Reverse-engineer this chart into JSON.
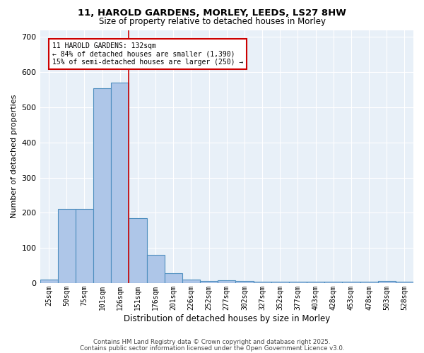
{
  "title_line1": "11, HAROLD GARDENS, MORLEY, LEEDS, LS27 8HW",
  "title_line2": "Size of property relative to detached houses in Morley",
  "xlabel": "Distribution of detached houses by size in Morley",
  "ylabel": "Number of detached properties",
  "categories": [
    "25sqm",
    "50sqm",
    "75sqm",
    "101sqm",
    "126sqm",
    "151sqm",
    "176sqm",
    "201sqm",
    "226sqm",
    "252sqm",
    "277sqm",
    "302sqm",
    "327sqm",
    "352sqm",
    "377sqm",
    "403sqm",
    "428sqm",
    "453sqm",
    "478sqm",
    "503sqm",
    "528sqm"
  ],
  "values": [
    10,
    210,
    210,
    555,
    570,
    185,
    80,
    28,
    10,
    5,
    8,
    5,
    3,
    3,
    3,
    3,
    3,
    3,
    3,
    5,
    3
  ],
  "bar_color": "#aec6e8",
  "bar_edge_color": "#4f8fbf",
  "bar_edge_width": 0.8,
  "red_line_x": 4.5,
  "red_line_color": "#cc0000",
  "annotation_text": "11 HAROLD GARDENS: 132sqm\n← 84% of detached houses are smaller (1,390)\n15% of semi-detached houses are larger (250) →",
  "annotation_box_color": "#ffffff",
  "annotation_box_edge_color": "#cc0000",
  "ylim": [
    0,
    720
  ],
  "yticks": [
    0,
    100,
    200,
    300,
    400,
    500,
    600,
    700
  ],
  "footer_line1": "Contains HM Land Registry data © Crown copyright and database right 2025.",
  "footer_line2": "Contains public sector information licensed under the Open Government Licence v3.0.",
  "bg_color": "#e8f0f8",
  "fig_bg_color": "#ffffff"
}
